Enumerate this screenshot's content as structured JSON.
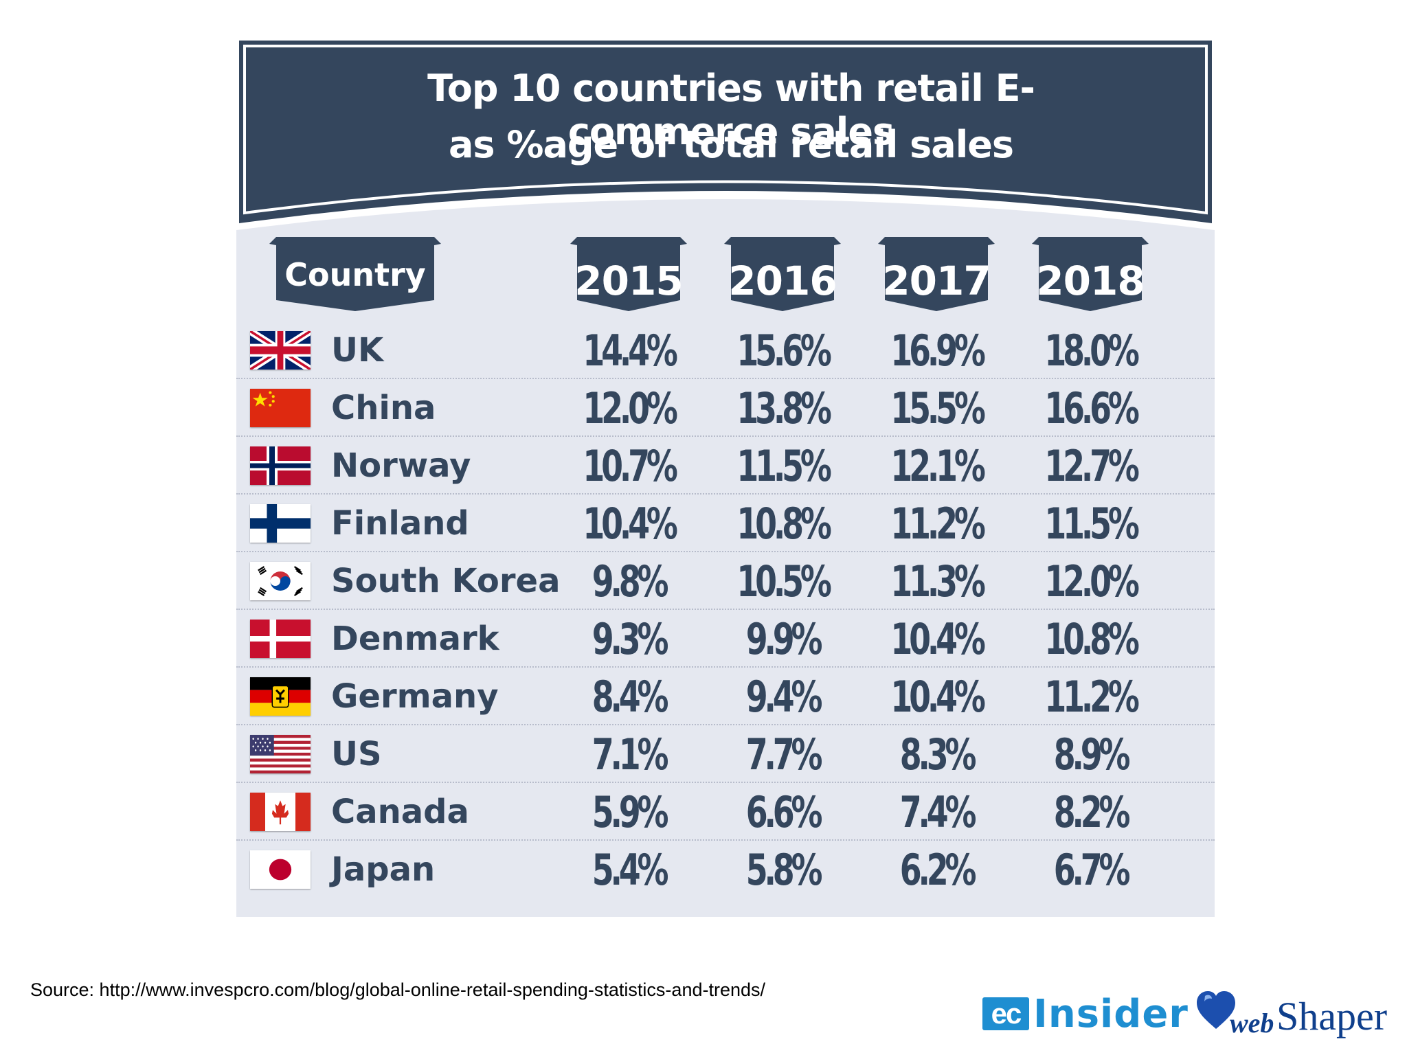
{
  "chart_data": {
    "type": "table",
    "title_lines": [
      "Top 10 countries with retail E-commerce sales",
      "as %age of total retail sales"
    ],
    "column_header": "Country",
    "years": [
      "2015",
      "2016",
      "2017",
      "2018"
    ],
    "unit": "%",
    "rows": [
      {
        "country": "UK",
        "flag": "uk-flag-icon",
        "values": [
          "14.4%",
          "15.6%",
          "16.9%",
          "18.0%"
        ]
      },
      {
        "country": "China",
        "flag": "china-flag-icon",
        "values": [
          "12.0%",
          "13.8%",
          "15.5%",
          "16.6%"
        ]
      },
      {
        "country": "Norway",
        "flag": "norway-flag-icon",
        "values": [
          "10.7%",
          "11.5%",
          "12.1%",
          "12.7%"
        ]
      },
      {
        "country": "Finland",
        "flag": "finland-flag-icon",
        "values": [
          "10.4%",
          "10.8%",
          "11.2%",
          "11.5%"
        ]
      },
      {
        "country": "South Korea",
        "flag": "south-korea-flag-icon",
        "values": [
          "9.8%",
          "10.5%",
          "11.3%",
          "12.0%"
        ]
      },
      {
        "country": "Denmark",
        "flag": "denmark-flag-icon",
        "values": [
          "9.3%",
          "9.9%",
          "10.4%",
          "10.8%"
        ]
      },
      {
        "country": "Germany",
        "flag": "germany-flag-icon",
        "values": [
          "8.4%",
          "9.4%",
          "10.4%",
          "11.2%"
        ]
      },
      {
        "country": "US",
        "flag": "us-flag-icon",
        "values": [
          "7.1%",
          "7.7%",
          "8.3%",
          "8.9%"
        ]
      },
      {
        "country": "Canada",
        "flag": "canada-flag-icon",
        "values": [
          "5.9%",
          "6.6%",
          "7.4%",
          "8.2%"
        ]
      },
      {
        "country": "Japan",
        "flag": "japan-flag-icon",
        "values": [
          "5.4%",
          "5.8%",
          "6.2%",
          "6.7%"
        ]
      }
    ]
  },
  "source_note": "Source: http://www.invespcro.com/blog/global-online-retail-spending-statistics-and-trends/",
  "logos": {
    "ecinsider": {
      "ec": "ec",
      "text": "Insider"
    },
    "webshaper": {
      "web": "web",
      "shaper": "Shaper"
    }
  },
  "colors": {
    "navy": "#34465d",
    "panel": "#e5e8f0",
    "ec_blue": "#1e8ed1",
    "webshaper_blue": "#0f3f8c"
  }
}
